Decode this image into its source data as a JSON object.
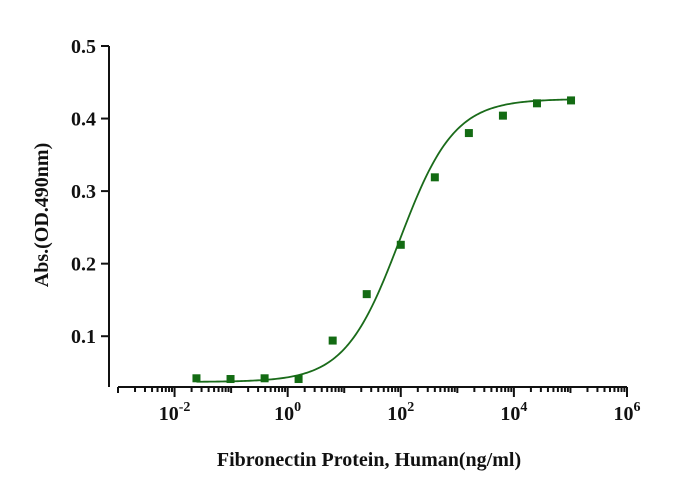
{
  "chart_data": {
    "type": "scatter",
    "title": "",
    "xlabel": "Fibronectin Protein, Human(ng/ml)",
    "ylabel": "Abs.(OD.490nm)",
    "xscale": "log10",
    "xlim_exp": [
      -3,
      6
    ],
    "ylim": [
      0.03,
      0.5
    ],
    "y_ticks": [
      {
        "value": 0.1,
        "label": "0.1"
      },
      {
        "value": 0.2,
        "label": "0.2"
      },
      {
        "value": 0.3,
        "label": "0.3"
      },
      {
        "value": 0.4,
        "label": "0.4"
      },
      {
        "value": 0.5,
        "label": "0.5"
      }
    ],
    "x_ticks": [
      {
        "exp": -2,
        "base": "10",
        "sup": "-2"
      },
      {
        "exp": 0,
        "base": "10",
        "sup": "0"
      },
      {
        "exp": 2,
        "base": "10",
        "sup": "2"
      },
      {
        "exp": 4,
        "base": "10",
        "sup": "4"
      },
      {
        "exp": 6,
        "base": "10",
        "sup": "6"
      }
    ],
    "color": "#1a6b1a",
    "marker_color": "#136b13",
    "series": [
      {
        "name": "Fibronectin Protein, Human",
        "x": [
          0.0244,
          0.0977,
          0.391,
          1.56,
          6.25,
          25,
          100,
          400,
          1600,
          6400,
          25600,
          102400
        ],
        "y": [
          0.042,
          0.041,
          0.042,
          0.041,
          0.094,
          0.158,
          0.226,
          0.319,
          0.38,
          0.404,
          0.421,
          0.425
        ]
      }
    ],
    "fit": {
      "model": "4PL",
      "bottom": 0.037,
      "top": 0.427,
      "ec50": 95,
      "hill": 0.9
    }
  }
}
